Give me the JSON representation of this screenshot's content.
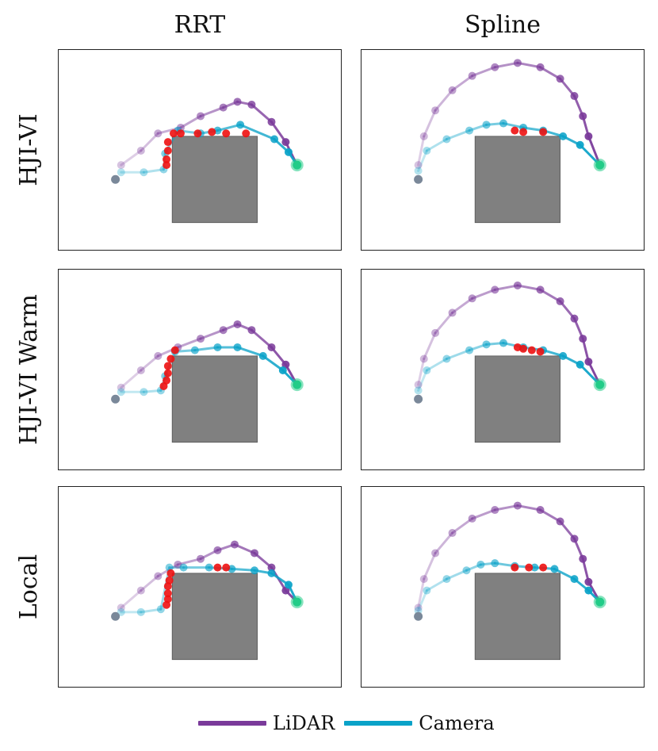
{
  "figure": {
    "columns": [
      "RRT",
      "Spline"
    ],
    "rows": [
      "HJI-VI",
      "HJI-VI Warm",
      "Local"
    ]
  },
  "legend": [
    {
      "label": "LiDAR",
      "color": "#7a3a9a"
    },
    {
      "label": "Camera",
      "color": "#0aa2c8"
    }
  ],
  "colors": {
    "lidar": "#7a3a9a",
    "camera": "#0aa2c8",
    "unsafe": "#ee1111",
    "obstacle": "#808080",
    "start": "#7a8899",
    "goal": "#22cc88"
  },
  "chart_data": [
    {
      "type": "scatter",
      "row": "HJI-VI",
      "col": "RRT",
      "xlim": [
        0,
        10
      ],
      "ylim": [
        0,
        7
      ],
      "obstacle": {
        "x": [
          4.0,
          7.0
        ],
        "y": [
          1.0,
          4.0
        ]
      },
      "start": [
        2.0,
        2.5
      ],
      "goal": [
        8.4,
        3.0
      ],
      "series": [
        {
          "name": "LiDAR",
          "points": [
            [
              2.2,
              3.0
            ],
            [
              2.9,
              3.5
            ],
            [
              3.5,
              4.1
            ],
            [
              4.3,
              4.3
            ],
            [
              5.0,
              4.7
            ],
            [
              5.8,
              5.0
            ],
            [
              6.3,
              5.2
            ],
            [
              6.8,
              5.1
            ],
            [
              7.5,
              4.5
            ],
            [
              8.0,
              3.8
            ],
            [
              8.4,
              3.0
            ]
          ]
        },
        {
          "name": "Camera",
          "points": [
            [
              2.2,
              2.75
            ],
            [
              3.0,
              2.75
            ],
            [
              3.7,
              2.85
            ],
            [
              3.75,
              3.4
            ],
            [
              4.2,
              4.2
            ],
            [
              5.0,
              4.1
            ],
            [
              5.6,
              4.2
            ],
            [
              6.4,
              4.4
            ],
            [
              7.6,
              3.9
            ],
            [
              8.1,
              3.45
            ],
            [
              8.4,
              3.0
            ]
          ]
        },
        {
          "name": "Unsafe",
          "points": [
            [
              3.8,
              3.0
            ],
            [
              3.8,
              3.2
            ],
            [
              3.85,
              3.5
            ],
            [
              3.85,
              3.8
            ],
            [
              4.05,
              4.1
            ],
            [
              4.3,
              4.1
            ],
            [
              4.9,
              4.1
            ],
            [
              5.4,
              4.15
            ],
            [
              5.9,
              4.1
            ],
            [
              6.6,
              4.1
            ]
          ]
        }
      ]
    },
    {
      "type": "scatter",
      "row": "HJI-VI",
      "col": "Spline",
      "xlim": [
        0,
        10
      ],
      "ylim": [
        0,
        7
      ],
      "obstacle": {
        "x": [
          4.0,
          7.0
        ],
        "y": [
          1.0,
          4.0
        ]
      },
      "start": [
        2.0,
        2.5
      ],
      "goal": [
        8.4,
        3.0
      ],
      "series": [
        {
          "name": "LiDAR",
          "points": [
            [
              2.0,
              3.0
            ],
            [
              2.2,
              4.0
            ],
            [
              2.6,
              4.9
            ],
            [
              3.2,
              5.6
            ],
            [
              3.9,
              6.1
            ],
            [
              4.7,
              6.4
            ],
            [
              5.5,
              6.55
            ],
            [
              6.3,
              6.4
            ],
            [
              7.0,
              6.0
            ],
            [
              7.5,
              5.4
            ],
            [
              7.8,
              4.7
            ],
            [
              8.0,
              4.0
            ],
            [
              8.4,
              3.0
            ]
          ]
        },
        {
          "name": "Camera",
          "points": [
            [
              2.0,
              2.8
            ],
            [
              2.3,
              3.5
            ],
            [
              3.0,
              3.9
            ],
            [
              3.8,
              4.2
            ],
            [
              4.4,
              4.4
            ],
            [
              5.0,
              4.45
            ],
            [
              5.7,
              4.3
            ],
            [
              6.4,
              4.2
            ],
            [
              7.1,
              4.0
            ],
            [
              7.7,
              3.7
            ],
            [
              8.4,
              3.0
            ]
          ]
        },
        {
          "name": "Unsafe",
          "points": [
            [
              5.4,
              4.2
            ],
            [
              5.7,
              4.15
            ],
            [
              6.4,
              4.15
            ]
          ]
        }
      ]
    },
    {
      "type": "scatter",
      "row": "HJI-VI Warm",
      "col": "RRT",
      "xlim": [
        0,
        10
      ],
      "ylim": [
        0,
        7
      ],
      "obstacle": {
        "x": [
          4.0,
          7.0
        ],
        "y": [
          1.0,
          4.0
        ]
      },
      "start": [
        2.0,
        2.5
      ],
      "goal": [
        8.4,
        3.0
      ],
      "series": [
        {
          "name": "LiDAR",
          "points": [
            [
              2.2,
              2.9
            ],
            [
              2.9,
              3.5
            ],
            [
              3.5,
              4.0
            ],
            [
              4.2,
              4.3
            ],
            [
              5.0,
              4.6
            ],
            [
              5.8,
              4.9
            ],
            [
              6.3,
              5.1
            ],
            [
              6.8,
              4.9
            ],
            [
              7.5,
              4.3
            ],
            [
              8.0,
              3.7
            ],
            [
              8.4,
              3.0
            ]
          ]
        },
        {
          "name": "Camera",
          "points": [
            [
              2.2,
              2.75
            ],
            [
              3.0,
              2.75
            ],
            [
              3.6,
              2.8
            ],
            [
              3.75,
              3.3
            ],
            [
              4.1,
              4.15
            ],
            [
              4.8,
              4.2
            ],
            [
              5.6,
              4.3
            ],
            [
              6.3,
              4.3
            ],
            [
              7.2,
              4.0
            ],
            [
              7.9,
              3.5
            ],
            [
              8.4,
              3.0
            ]
          ]
        },
        {
          "name": "Unsafe",
          "points": [
            [
              3.7,
              2.95
            ],
            [
              3.8,
              3.15
            ],
            [
              3.85,
              3.4
            ],
            [
              3.85,
              3.65
            ],
            [
              3.95,
              3.9
            ],
            [
              4.1,
              4.2
            ]
          ]
        }
      ]
    },
    {
      "type": "scatter",
      "row": "HJI-VI Warm",
      "col": "Spline",
      "xlim": [
        0,
        10
      ],
      "ylim": [
        0,
        7
      ],
      "obstacle": {
        "x": [
          4.0,
          7.0
        ],
        "y": [
          1.0,
          4.0
        ]
      },
      "start": [
        2.0,
        2.5
      ],
      "goal": [
        8.4,
        3.0
      ],
      "series": [
        {
          "name": "LiDAR",
          "points": [
            [
              2.0,
              3.0
            ],
            [
              2.2,
              3.9
            ],
            [
              2.6,
              4.8
            ],
            [
              3.2,
              5.5
            ],
            [
              3.9,
              6.0
            ],
            [
              4.7,
              6.3
            ],
            [
              5.5,
              6.45
            ],
            [
              6.3,
              6.3
            ],
            [
              7.0,
              5.9
            ],
            [
              7.5,
              5.3
            ],
            [
              7.8,
              4.6
            ],
            [
              8.0,
              3.8
            ],
            [
              8.4,
              3.0
            ]
          ]
        },
        {
          "name": "Camera",
          "points": [
            [
              2.0,
              2.8
            ],
            [
              2.3,
              3.5
            ],
            [
              3.0,
              3.9
            ],
            [
              3.8,
              4.2
            ],
            [
              4.4,
              4.4
            ],
            [
              5.0,
              4.45
            ],
            [
              5.7,
              4.3
            ],
            [
              6.4,
              4.2
            ],
            [
              7.1,
              4.0
            ],
            [
              7.7,
              3.7
            ],
            [
              8.4,
              3.0
            ]
          ]
        },
        {
          "name": "Unsafe",
          "points": [
            [
              5.5,
              4.3
            ],
            [
              5.7,
              4.25
            ],
            [
              6.0,
              4.2
            ],
            [
              6.3,
              4.15
            ]
          ]
        }
      ]
    },
    {
      "type": "scatter",
      "row": "Local",
      "col": "RRT",
      "xlim": [
        0,
        10
      ],
      "ylim": [
        0,
        7
      ],
      "obstacle": {
        "x": [
          4.0,
          7.0
        ],
        "y": [
          1.0,
          4.0
        ]
      },
      "start": [
        2.0,
        2.5
      ],
      "goal": [
        8.4,
        3.0
      ],
      "series": [
        {
          "name": "LiDAR",
          "points": [
            [
              2.2,
              2.8
            ],
            [
              2.9,
              3.4
            ],
            [
              3.5,
              3.9
            ],
            [
              4.2,
              4.3
            ],
            [
              5.0,
              4.5
            ],
            [
              5.6,
              4.8
            ],
            [
              6.2,
              5.0
            ],
            [
              6.9,
              4.7
            ],
            [
              7.5,
              4.2
            ],
            [
              8.0,
              3.4
            ],
            [
              8.4,
              3.0
            ]
          ]
        },
        {
          "name": "Camera",
          "points": [
            [
              2.2,
              2.65
            ],
            [
              2.9,
              2.65
            ],
            [
              3.6,
              2.75
            ],
            [
              3.9,
              4.2
            ],
            [
              4.4,
              4.2
            ],
            [
              5.3,
              4.2
            ],
            [
              6.1,
              4.15
            ],
            [
              6.9,
              4.1
            ],
            [
              7.5,
              4.0
            ],
            [
              8.1,
              3.6
            ],
            [
              8.4,
              3.0
            ]
          ]
        },
        {
          "name": "Unsafe",
          "points": [
            [
              3.8,
              2.9
            ],
            [
              3.85,
              3.1
            ],
            [
              3.85,
              3.3
            ],
            [
              3.85,
              3.55
            ],
            [
              3.9,
              3.75
            ],
            [
              3.95,
              4.0
            ],
            [
              5.6,
              4.2
            ],
            [
              5.9,
              4.2
            ]
          ]
        }
      ]
    },
    {
      "type": "scatter",
      "row": "Local",
      "col": "Spline",
      "xlim": [
        0,
        10
      ],
      "ylim": [
        0,
        7
      ],
      "obstacle": {
        "x": [
          4.0,
          7.0
        ],
        "y": [
          1.0,
          4.0
        ]
      },
      "start": [
        2.0,
        2.5
      ],
      "goal": [
        8.4,
        3.0
      ],
      "series": [
        {
          "name": "LiDAR",
          "points": [
            [
              2.0,
              2.8
            ],
            [
              2.2,
              3.8
            ],
            [
              2.6,
              4.7
            ],
            [
              3.2,
              5.4
            ],
            [
              3.9,
              5.9
            ],
            [
              4.7,
              6.2
            ],
            [
              5.5,
              6.35
            ],
            [
              6.3,
              6.2
            ],
            [
              7.0,
              5.8
            ],
            [
              7.5,
              5.2
            ],
            [
              7.8,
              4.5
            ],
            [
              8.0,
              3.7
            ],
            [
              8.4,
              3.0
            ]
          ]
        },
        {
          "name": "Camera",
          "points": [
            [
              2.0,
              2.7
            ],
            [
              2.3,
              3.4
            ],
            [
              3.0,
              3.8
            ],
            [
              3.7,
              4.1
            ],
            [
              4.2,
              4.3
            ],
            [
              4.7,
              4.35
            ],
            [
              5.4,
              4.25
            ],
            [
              6.1,
              4.2
            ],
            [
              6.8,
              4.15
            ],
            [
              7.5,
              3.8
            ],
            [
              8.0,
              3.4
            ],
            [
              8.4,
              3.0
            ]
          ]
        },
        {
          "name": "Unsafe",
          "points": [
            [
              5.4,
              4.2
            ],
            [
              5.9,
              4.2
            ],
            [
              6.4,
              4.2
            ]
          ]
        }
      ]
    }
  ]
}
